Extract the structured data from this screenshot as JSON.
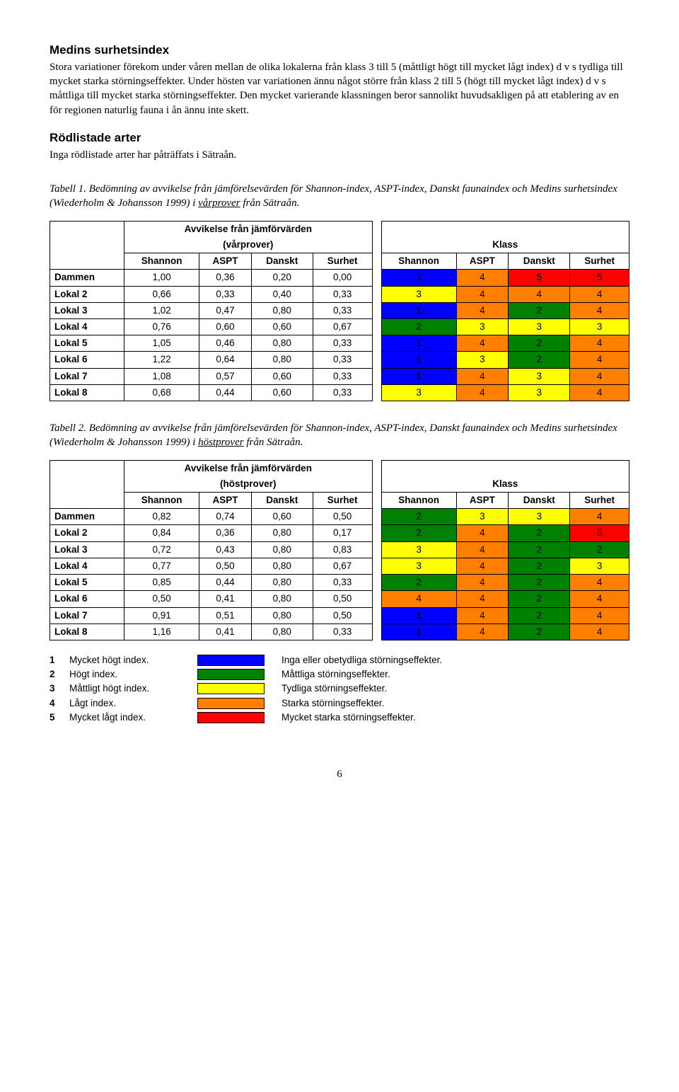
{
  "section1": {
    "title": "Medins surhetsindex",
    "body": "Stora variationer förekom under våren mellan de olika lokalerna från klass 3 till 5 (måttligt högt till mycket lågt index) d v s tydliga till mycket starka störningseffekter. Under hösten var variationen ännu något större från klass 2 till 5 (högt till mycket lågt index) d v s måttliga till mycket starka störningseffekter. Den mycket varierande klassningen beror sannolikt huvudsakligen på att etablering av en för regionen naturlig fauna i ån ännu inte skett."
  },
  "section2": {
    "title": "Rödlistade arter",
    "body": "Inga rödlistade arter har påträffats i Sätraån."
  },
  "caption1": {
    "prefix": "Tabell 1.",
    "text_a": " Bedömning av avvikelse från jämförelsevärden för Shannon-index, ASPT-index, Danskt faunaindex och Medins surhetsindex (Wiederholm & Johansson 1999) i ",
    "underlined": "vårprover",
    "text_b": " från Sätraån."
  },
  "caption2": {
    "prefix": "Tabell 2.",
    "text_a": " Bedömning av avvikelse från jämförelsevärden för Shannon-index, ASPT-index, Danskt faunaindex och Medins surhetsindex (Wiederholm & Johansson 1999) i ",
    "underlined": "höstprover",
    "text_b": " från Sätraån."
  },
  "table_common": {
    "group_left_1": "Avvikelse från jämförvärden",
    "group_left_2a": "(vårprover)",
    "group_left_2b": "(höstprover)",
    "group_right": "Klass",
    "cols": [
      "Shannon",
      "ASPT",
      "Danskt",
      "Surhet",
      "Shannon",
      "ASPT",
      "Danskt",
      "Surhet"
    ]
  },
  "table1_rows": [
    {
      "label": "Dammen",
      "v": [
        "1,00",
        "0,36",
        "0,20",
        "0,00"
      ],
      "k": [
        1,
        4,
        5,
        5
      ]
    },
    {
      "label": "Lokal 2",
      "v": [
        "0,66",
        "0,33",
        "0,40",
        "0,33"
      ],
      "k": [
        3,
        4,
        4,
        4
      ]
    },
    {
      "label": "Lokal 3",
      "v": [
        "1,02",
        "0,47",
        "0,80",
        "0,33"
      ],
      "k": [
        1,
        4,
        2,
        4
      ]
    },
    {
      "label": "Lokal 4",
      "v": [
        "0,76",
        "0,60",
        "0,60",
        "0,67"
      ],
      "k": [
        2,
        3,
        3,
        3
      ]
    },
    {
      "label": "Lokal 5",
      "v": [
        "1,05",
        "0,46",
        "0,80",
        "0,33"
      ],
      "k": [
        1,
        4,
        2,
        4
      ]
    },
    {
      "label": "Lokal 6",
      "v": [
        "1,22",
        "0,64",
        "0,80",
        "0,33"
      ],
      "k": [
        1,
        3,
        2,
        4
      ]
    },
    {
      "label": "Lokal 7",
      "v": [
        "1,08",
        "0,57",
        "0,60",
        "0,33"
      ],
      "k": [
        1,
        4,
        3,
        4
      ]
    },
    {
      "label": "Lokal 8",
      "v": [
        "0,68",
        "0,44",
        "0,60",
        "0,33"
      ],
      "k": [
        3,
        4,
        3,
        4
      ]
    }
  ],
  "table2_rows": [
    {
      "label": "Dammen",
      "v": [
        "0,82",
        "0,74",
        "0,60",
        "0,50"
      ],
      "k": [
        2,
        3,
        3,
        4
      ]
    },
    {
      "label": "Lokal 2",
      "v": [
        "0,84",
        "0,36",
        "0,80",
        "0,17"
      ],
      "k": [
        2,
        4,
        2,
        5
      ]
    },
    {
      "label": "Lokal 3",
      "v": [
        "0,72",
        "0,43",
        "0,80",
        "0,83"
      ],
      "k": [
        3,
        4,
        2,
        2
      ]
    },
    {
      "label": "Lokal 4",
      "v": [
        "0,77",
        "0,50",
        "0,80",
        "0,67"
      ],
      "k": [
        3,
        4,
        2,
        3
      ]
    },
    {
      "label": "Lokal 5",
      "v": [
        "0,85",
        "0,44",
        "0,80",
        "0,33"
      ],
      "k": [
        2,
        4,
        2,
        4
      ]
    },
    {
      "label": "Lokal 6",
      "v": [
        "0,50",
        "0,41",
        "0,80",
        "0,50"
      ],
      "k": [
        4,
        4,
        2,
        4
      ]
    },
    {
      "label": "Lokal 7",
      "v": [
        "0,91",
        "0,51",
        "0,80",
        "0,50"
      ],
      "k": [
        1,
        4,
        2,
        4
      ]
    },
    {
      "label": "Lokal 8",
      "v": [
        "1,16",
        "0,41",
        "0,80",
        "0,33"
      ],
      "k": [
        1,
        4,
        2,
        4
      ]
    }
  ],
  "legend": {
    "left": [
      {
        "num": "1",
        "label": "Mycket högt index."
      },
      {
        "num": "2",
        "label": "Högt index."
      },
      {
        "num": "3",
        "label": "Måttligt högt index."
      },
      {
        "num": "4",
        "label": "Lågt index."
      },
      {
        "num": "5",
        "label": "Mycket lågt index."
      }
    ],
    "right": [
      {
        "cls": 1,
        "desc": "Inga eller obetydliga störningseffekter."
      },
      {
        "cls": 2,
        "desc": "Måttliga störningseffekter."
      },
      {
        "cls": 3,
        "desc": "Tydliga störningseffekter."
      },
      {
        "cls": 4,
        "desc": "Starka störningseffekter."
      },
      {
        "cls": 5,
        "desc": "Mycket starka störningseffekter."
      }
    ]
  },
  "page_number": "6",
  "colors": {
    "1": "#0000ff",
    "2": "#008000",
    "3": "#ffff00",
    "4": "#ff8000",
    "5": "#ff0000"
  }
}
